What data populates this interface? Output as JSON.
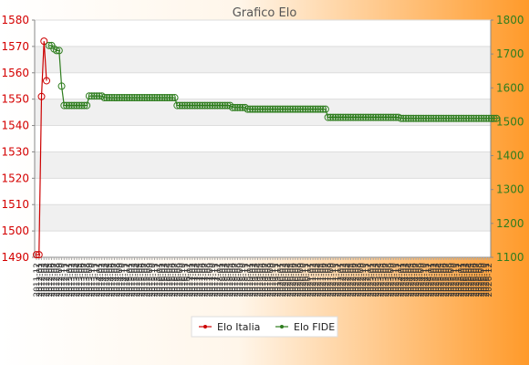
{
  "chart_data": {
    "type": "line",
    "title": "Grafico Elo",
    "xlabel": "",
    "ylabel_left": "",
    "ylabel_right": "",
    "y_left": {
      "ticks": [
        1490,
        1500,
        1510,
        1520,
        1530,
        1540,
        1550,
        1560,
        1570,
        1580
      ],
      "range": [
        1490,
        1580
      ],
      "color": "#d40000"
    },
    "y_right": {
      "ticks": [
        1100,
        1200,
        1300,
        1400,
        1500,
        1600,
        1700,
        1800
      ],
      "range": [
        1100,
        1800
      ],
      "color": "#2e7d1e"
    },
    "x_tick_labels": [
      "2011-12",
      "2012-01",
      "2012-02",
      "2012-03",
      "2012-04",
      "2012-05",
      "2012-06",
      "2012-07",
      "2012-08",
      "2012-09",
      "2012-10",
      "2012-11",
      "2012-12",
      "2013-01",
      "2013-02",
      "2013-03",
      "2013-04",
      "2013-05",
      "2013-06",
      "2013-07",
      "2013-08",
      "2013-09",
      "2013-10",
      "2013-11",
      "2013-12",
      "2014-01",
      "2014-02",
      "2014-03",
      "2014-04",
      "2014-05",
      "2014-06",
      "2014-07",
      "2014-08",
      "2014-09",
      "2014-10",
      "2014-11",
      "2014-12",
      "2015-01",
      "2015-02",
      "2015-03",
      "2015-04",
      "2015-05",
      "2015-06",
      "2015-07",
      "2015-08",
      "2015-09",
      "2015-10",
      "2015-11",
      "2015-12",
      "2016-01",
      "2016-02",
      "2016-03",
      "2016-04",
      "2016-05",
      "2016-06",
      "2016-07",
      "2016-08",
      "2016-09",
      "2016-10",
      "2016-11",
      "2016-12",
      "2017-01",
      "2017-02",
      "2017-03",
      "2017-04",
      "2017-05",
      "2017-06",
      "2017-07",
      "2017-08",
      "2017-09",
      "2017-10",
      "2017-11",
      "2017-12",
      "2018-01",
      "2018-02",
      "2018-03",
      "2018-04",
      "2018-05",
      "2018-06",
      "2018-07",
      "2018-08",
      "2018-09",
      "2018-10",
      "2018-11",
      "2018-12",
      "2019-01",
      "2019-02",
      "2019-03",
      "2019-04",
      "2019-05",
      "2019-06",
      "2019-07",
      "2019-08",
      "2019-09",
      "2019-10",
      "2019-11",
      "2019-12",
      "2020-01",
      "2020-02",
      "2020-03",
      "2020-04",
      "2020-05",
      "2020-06",
      "2020-07",
      "2020-08",
      "2020-09",
      "2020-10",
      "2020-11",
      "2020-12",
      "2021-01",
      "2021-02",
      "2021-03",
      "2021-04",
      "2021-05",
      "2021-06",
      "2021-07",
      "2021-08",
      "2021-09",
      "2021-10",
      "2021-11",
      "2021-12",
      "2022-01",
      "2022-02",
      "2022-03",
      "2022-04",
      "2022-05",
      "2022-06",
      "2022-07",
      "2022-08",
      "2022-09",
      "2022-10",
      "2022-11",
      "2022-12",
      "2023-01",
      "2023-02",
      "2023-03",
      "2023-04",
      "2023-05",
      "2023-06",
      "2023-07",
      "2023-08",
      "2023-09",
      "2023-10",
      "2023-11",
      "2023-12",
      "2024-01",
      "2024-02",
      "2024-03",
      "2024-04",
      "2024-05",
      "2024-06",
      "2024-07",
      "2024-08",
      "2024-09",
      "2024-10",
      "2024-11",
      "2024-12",
      "2025-01",
      "2025-02",
      "2025-03",
      "2025-04",
      "2025-05",
      "2025-06",
      "2025-07",
      "2025-08",
      "2025-09",
      "2025-10",
      "2025-11",
      "2025-12",
      "2026-01",
      "2026-02",
      "2026-03",
      "2026-04",
      "2026-05",
      "2026-06",
      "2026-07",
      "2026-08",
      "2026-09",
      "2026-10",
      "2026-11",
      "2026-12"
    ],
    "series": [
      {
        "name": "Elo Italia",
        "axis": "left",
        "color": "#cc0000",
        "values": [
          1491,
          1491,
          1551,
          1572,
          1557,
          null,
          null,
          null,
          null,
          null,
          null,
          null,
          null,
          null,
          null,
          null,
          null,
          null,
          null,
          null,
          null,
          null,
          null,
          null,
          null,
          null,
          null,
          null,
          null,
          null,
          null,
          null,
          null,
          null,
          null,
          null,
          null,
          null,
          null,
          null,
          null,
          null,
          null,
          null,
          null,
          null,
          null,
          null,
          null,
          null,
          null,
          null,
          null,
          null,
          null,
          null,
          null,
          null,
          null,
          null,
          null,
          null,
          null,
          null,
          null,
          null,
          null,
          null,
          null,
          null,
          null,
          null,
          null,
          null,
          null,
          null,
          null,
          null,
          null,
          null,
          null,
          null,
          null,
          null,
          null,
          null,
          null,
          null,
          null,
          null,
          null,
          null,
          null,
          null,
          null,
          null,
          null,
          null,
          null,
          null,
          null,
          null,
          null,
          null,
          null,
          null,
          null,
          null,
          null,
          null,
          null,
          null,
          null,
          null,
          null,
          null,
          null,
          null,
          null,
          null,
          null,
          null,
          null,
          null,
          null,
          null,
          null,
          null,
          null,
          null,
          null,
          null,
          null,
          null,
          null,
          null,
          null,
          null,
          null,
          null,
          null,
          null,
          null,
          null,
          null,
          null,
          null,
          null,
          null,
          null,
          null,
          null,
          null,
          null,
          null,
          null,
          null,
          null,
          null,
          null,
          null,
          null,
          null,
          null,
          null,
          null,
          null,
          null,
          null,
          null,
          null,
          null,
          null,
          null,
          null,
          null,
          null,
          null,
          null,
          null,
          null,
          null,
          null,
          null,
          null,
          null,
          null,
          null,
          null,
          null,
          null,
          null,
          null,
          null,
          null,
          null,
          null
        ]
      },
      {
        "name": "Elo FIDE",
        "axis": "right",
        "color": "#2e7d1e",
        "values": [
          null,
          null,
          null,
          null,
          null,
          1725,
          1725,
          1715,
          1710,
          1710,
          1605,
          1548,
          1548,
          1548,
          1548,
          1548,
          1548,
          1548,
          1548,
          1548,
          1548,
          1576,
          1576,
          1576,
          1576,
          1576,
          1576,
          1571,
          1571,
          1571,
          1571,
          1571,
          1571,
          1571,
          1571,
          1571,
          1571,
          1571,
          1571,
          1571,
          1571,
          1571,
          1571,
          1571,
          1571,
          1571,
          1571,
          1571,
          1571,
          1571,
          1571,
          1571,
          1571,
          1571,
          1571,
          1571,
          1548,
          1548,
          1548,
          1548,
          1548,
          1548,
          1548,
          1548,
          1548,
          1548,
          1548,
          1548,
          1548,
          1548,
          1548,
          1548,
          1548,
          1548,
          1548,
          1548,
          1548,
          1548,
          1542,
          1542,
          1542,
          1542,
          1542,
          1542,
          1537,
          1537,
          1537,
          1537,
          1537,
          1537,
          1537,
          1537,
          1537,
          1537,
          1537,
          1537,
          1537,
          1537,
          1537,
          1537,
          1537,
          1537,
          1537,
          1537,
          1537,
          1537,
          1537,
          1537,
          1537,
          1537,
          1537,
          1537,
          1537,
          1537,
          1537,
          1537,
          1513,
          1513,
          1513,
          1513,
          1513,
          1513,
          1513,
          1513,
          1513,
          1513,
          1513,
          1513,
          1513,
          1513,
          1513,
          1513,
          1513,
          1513,
          1513,
          1513,
          1513,
          1513,
          1513,
          1513,
          1513,
          1513,
          1513,
          1513,
          1513,
          1510,
          1510,
          1510,
          1510,
          1510,
          1510,
          1510,
          1510,
          1510,
          1510,
          1510,
          1510,
          1510,
          1510,
          1510,
          1510,
          1510,
          1510,
          1510,
          1510,
          1510,
          1510,
          1510,
          1510,
          1510,
          1510,
          1510,
          1510,
          1510,
          1510,
          1510,
          1510,
          1510,
          1510,
          1510,
          1510,
          1510,
          1510,
          1510
        ]
      }
    ],
    "grid": true,
    "legend_position": "bottom-center"
  }
}
